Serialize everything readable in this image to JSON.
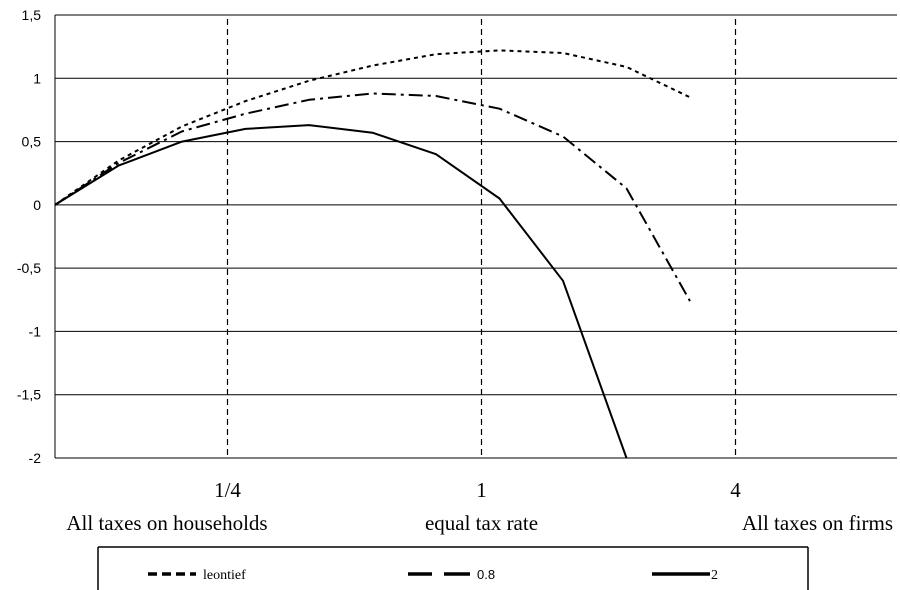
{
  "chart_data": {
    "type": "line",
    "ylim": [
      -2,
      1.5
    ],
    "yticks": [
      "1,5",
      "1",
      "0,5",
      "0",
      "-0,5",
      "-1",
      "-1,5",
      "-2"
    ],
    "ytick_values": [
      1.5,
      1,
      0.5,
      0,
      -0.5,
      -1,
      -1.5,
      -2
    ],
    "grid": true,
    "x": [
      0,
      1,
      2,
      3,
      4,
      5,
      6,
      7,
      8,
      9,
      10,
      11,
      12,
      13
    ],
    "xlim": [
      0,
      13.5
    ],
    "vlines": [
      3,
      7,
      11
    ],
    "x_labels": [
      {
        "at": 3,
        "lines": [
          "1/4",
          "All taxes on households"
        ]
      },
      {
        "at": 7,
        "lines": [
          "1",
          "equal tax rate"
        ]
      },
      {
        "at": 11,
        "lines": [
          "4",
          "All taxes on firms"
        ]
      }
    ],
    "series": [
      {
        "name": "leontief",
        "style": "dotted",
        "values": [
          0,
          0.35,
          0.62,
          0.82,
          0.98,
          1.1,
          1.19,
          1.22,
          1.2,
          1.09,
          0.85,
          null,
          null,
          null
        ]
      },
      {
        "name": "0.8",
        "style": "dashdot",
        "values": [
          0,
          0.33,
          0.58,
          0.72,
          0.83,
          0.88,
          0.86,
          0.76,
          0.54,
          0.13,
          -0.76,
          null,
          null,
          null
        ]
      },
      {
        "name": "2",
        "style": "solid",
        "values": [
          0,
          0.31,
          0.5,
          0.6,
          0.63,
          0.57,
          0.4,
          0.05,
          -0.6,
          -2.0,
          null,
          null,
          null,
          null
        ]
      }
    ],
    "legend_position": "bottom"
  }
}
